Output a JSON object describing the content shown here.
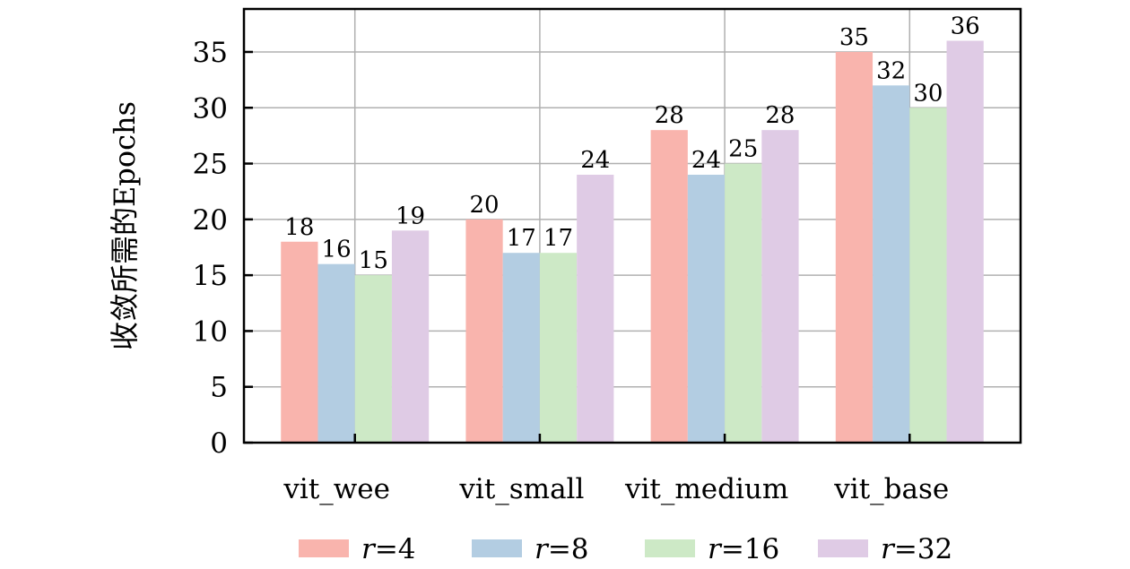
{
  "chart_data": {
    "type": "bar",
    "title": "",
    "xlabel": "",
    "ylabel": "收敛所需的Epochs",
    "categories": [
      "vit_wee",
      "vit_small",
      "vit_medium",
      "vit_base"
    ],
    "series": [
      {
        "name": "r=4",
        "name_var": "r",
        "name_val": "=4",
        "color": "#f9b4ad",
        "values": [
          18,
          20,
          28,
          35
        ]
      },
      {
        "name": "r=8",
        "name_var": "r",
        "name_val": "=8",
        "color": "#b3cde2",
        "values": [
          16,
          17,
          24,
          32
        ]
      },
      {
        "name": "r=16",
        "name_var": "r",
        "name_val": "=16",
        "color": "#cde9c6",
        "values": [
          15,
          17,
          25,
          30
        ]
      },
      {
        "name": "r=32",
        "name_var": "r",
        "name_val": "=32",
        "color": "#dfcbe5",
        "values": [
          19,
          24,
          28,
          36
        ]
      }
    ],
    "ylim": [
      0,
      38.85
    ],
    "yticks": [
      0,
      5,
      10,
      15,
      20,
      25,
      30,
      35
    ],
    "grid": true,
    "legend_position": "bottom"
  }
}
